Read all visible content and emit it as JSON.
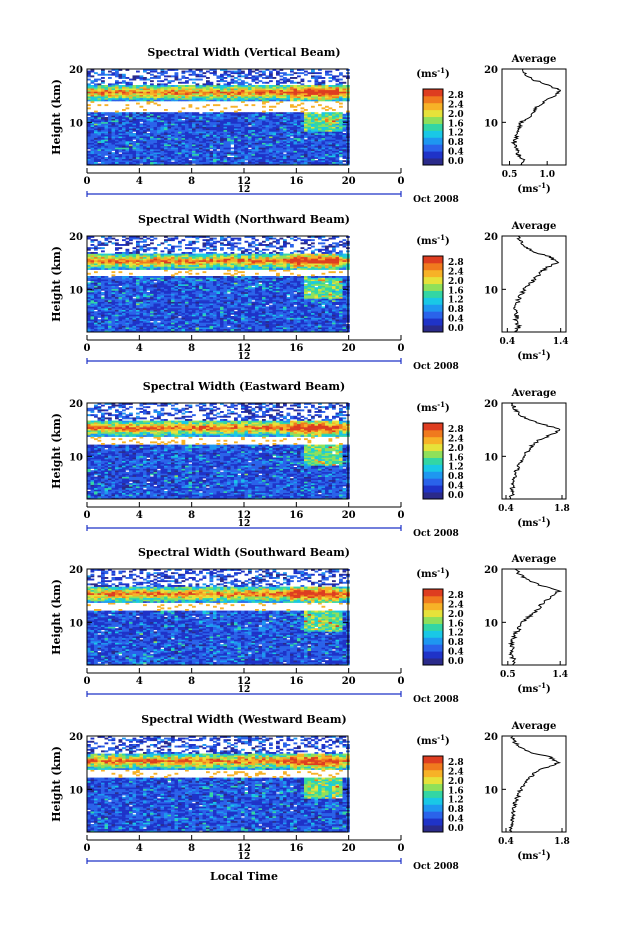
{
  "figure": {
    "xlabel": "Local Time",
    "date_label": "Oct 2008",
    "colorbar_unit_base": "(ms",
    "colorbar_unit_exp": "-1",
    "colorbar_ticks": [
      "0.0",
      "0.4",
      "0.8",
      "1.2",
      "1.6",
      "2.0",
      "2.4",
      "2.8"
    ],
    "colors": {
      "scale": [
        "#2a2a8a",
        "#1f33c8",
        "#2a63ea",
        "#1e97f0",
        "#19c8e6",
        "#33d6a4",
        "#8fe05a",
        "#e6e23a",
        "#f7b227",
        "#f07a1e",
        "#de3d20"
      ],
      "background": "#ffffff",
      "axis": "#000000",
      "date_axis": "#1f33c8"
    }
  },
  "chart_data": [
    {
      "type": "heatmap",
      "title": "Spectral Width (Vertical Beam)",
      "ylabel": "Height (km)",
      "x_ticks": [
        "0",
        "4",
        "8",
        "12",
        "16",
        "20",
        "0"
      ],
      "y_ticks": [
        "20",
        "10"
      ],
      "xlim": [
        0,
        24
      ],
      "ylim": [
        2,
        20
      ],
      "date_tick": "12",
      "average": {
        "title": "Average",
        "x_ticks": [
          "0.5",
          "1.0"
        ],
        "xlim": [
          0.4,
          1.25
        ],
        "xlabel_base": "(ms",
        "xlabel_exp": "-1",
        "height_km": [
          2,
          3,
          4,
          5,
          6,
          7,
          8,
          9,
          10,
          11,
          12,
          13,
          14,
          15,
          16,
          17,
          18,
          19,
          20
        ],
        "width_ms": [
          0.66,
          0.68,
          0.62,
          0.6,
          0.56,
          0.58,
          0.6,
          0.62,
          0.66,
          0.76,
          0.82,
          0.88,
          0.96,
          1.12,
          1.18,
          1.0,
          0.82,
          0.72,
          0.68
        ]
      }
    },
    {
      "type": "heatmap",
      "title": "Spectral Width (Northward Beam)",
      "ylabel": "Height (km)",
      "x_ticks": [
        "0",
        "4",
        "8",
        "12",
        "16",
        "20",
        "0"
      ],
      "y_ticks": [
        "20",
        "10"
      ],
      "xlim": [
        0,
        24
      ],
      "ylim": [
        2,
        20
      ],
      "date_tick": "12",
      "average": {
        "title": "Average",
        "x_ticks": [
          "0.4",
          "1.4"
        ],
        "xlim": [
          0.3,
          1.5
        ],
        "xlabel_base": "(ms",
        "xlabel_exp": "-1",
        "height_km": [
          2,
          3,
          4,
          5,
          6,
          7,
          8,
          9,
          10,
          11,
          12,
          13,
          14,
          15,
          16,
          17,
          18,
          19,
          20
        ],
        "width_ms": [
          0.55,
          0.62,
          0.56,
          0.58,
          0.54,
          0.58,
          0.6,
          0.66,
          0.72,
          0.82,
          0.92,
          1.02,
          1.12,
          1.32,
          1.22,
          0.9,
          0.74,
          0.64,
          0.6
        ]
      }
    },
    {
      "type": "heatmap",
      "title": "Spectral Width (Eastward Beam)",
      "ylabel": "Height (km)",
      "x_ticks": [
        "0",
        "4",
        "8",
        "12",
        "16",
        "20",
        "0"
      ],
      "y_ticks": [
        "20",
        "10"
      ],
      "xlim": [
        0,
        24
      ],
      "ylim": [
        2,
        20
      ],
      "date_tick": "12",
      "average": {
        "title": "Average",
        "x_ticks": [
          "0.4",
          "1.8"
        ],
        "xlim": [
          0.3,
          1.9
        ],
        "xlabel_base": "(ms",
        "xlabel_exp": "-1",
        "height_km": [
          2,
          3,
          4,
          5,
          6,
          7,
          8,
          9,
          10,
          11,
          12,
          13,
          14,
          15,
          16,
          17,
          18,
          19,
          20
        ],
        "width_ms": [
          0.52,
          0.55,
          0.56,
          0.6,
          0.62,
          0.64,
          0.7,
          0.76,
          0.84,
          0.94,
          1.06,
          1.22,
          1.52,
          1.78,
          1.3,
          0.92,
          0.7,
          0.62,
          0.58
        ]
      }
    },
    {
      "type": "heatmap",
      "title": "Spectral Width (Southward Beam)",
      "ylabel": "Height (km)",
      "x_ticks": [
        "0",
        "4",
        "8",
        "12",
        "16",
        "20",
        "0"
      ],
      "y_ticks": [
        "20",
        "10"
      ],
      "xlim": [
        0,
        24
      ],
      "ylim": [
        2,
        20
      ],
      "date_tick": "12",
      "average": {
        "title": "Average",
        "x_ticks": [
          "0.5",
          "1.4"
        ],
        "xlim": [
          0.4,
          1.5
        ],
        "xlabel_base": "(ms",
        "xlabel_exp": "-1",
        "height_km": [
          2,
          3,
          4,
          5,
          6,
          7,
          8,
          9,
          10,
          11,
          12,
          13,
          14,
          15,
          16,
          17,
          18,
          19,
          20
        ],
        "width_ms": [
          0.58,
          0.6,
          0.56,
          0.58,
          0.56,
          0.6,
          0.64,
          0.7,
          0.76,
          0.86,
          0.98,
          1.06,
          1.12,
          1.3,
          1.38,
          1.06,
          0.84,
          0.7,
          0.62
        ]
      }
    },
    {
      "type": "heatmap",
      "title": "Spectral Width (Westward Beam)",
      "ylabel": "Height (km)",
      "x_ticks": [
        "0",
        "4",
        "8",
        "12",
        "16",
        "20",
        "0"
      ],
      "y_ticks": [
        "20",
        "10"
      ],
      "xlim": [
        0,
        24
      ],
      "ylim": [
        2,
        20
      ],
      "date_tick": "12",
      "average": {
        "title": "Average",
        "x_ticks": [
          "0.4",
          "1.8"
        ],
        "xlim": [
          0.3,
          1.9
        ],
        "xlabel_base": "(ms",
        "xlabel_exp": "-1",
        "height_km": [
          2,
          3,
          4,
          5,
          6,
          7,
          8,
          9,
          10,
          11,
          12,
          13,
          14,
          15,
          16,
          17,
          18,
          19,
          20
        ],
        "width_ms": [
          0.5,
          0.54,
          0.56,
          0.58,
          0.6,
          0.62,
          0.66,
          0.72,
          0.78,
          0.86,
          0.96,
          1.1,
          1.36,
          1.72,
          1.5,
          1.0,
          0.74,
          0.6,
          0.56
        ]
      }
    }
  ]
}
